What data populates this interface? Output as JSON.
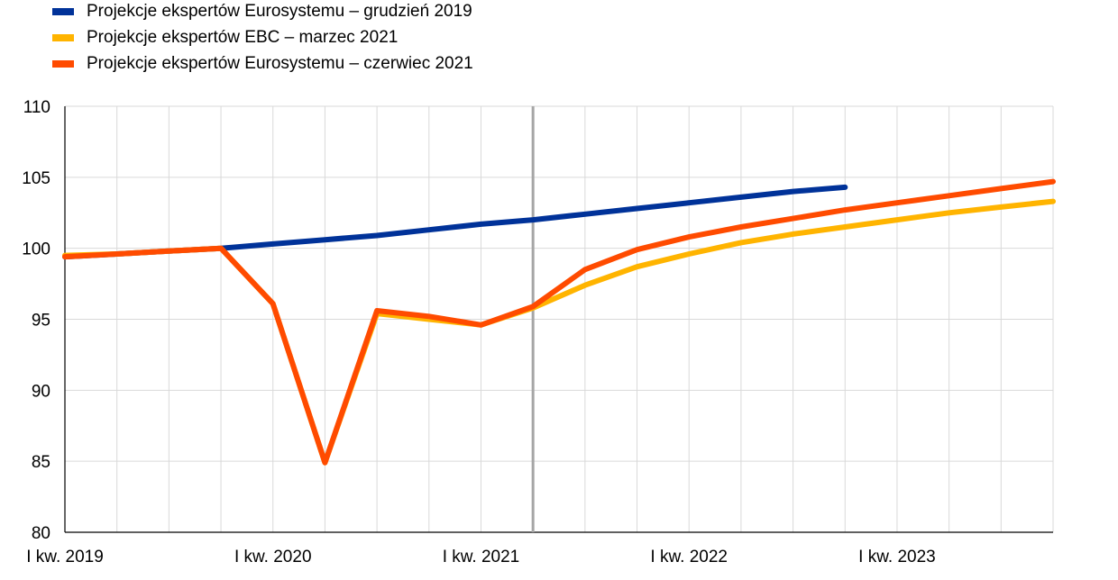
{
  "chart_data": {
    "type": "line",
    "title": "",
    "xlabel": "",
    "ylabel": "",
    "ylim": [
      80,
      110
    ],
    "yticks": [
      80,
      85,
      90,
      95,
      100,
      105,
      110
    ],
    "x": [
      "2019Q1",
      "2019Q2",
      "2019Q3",
      "2019Q4",
      "2020Q1",
      "2020Q2",
      "2020Q3",
      "2020Q4",
      "2021Q1",
      "2021Q2",
      "2021Q3",
      "2021Q4",
      "2022Q1",
      "2022Q2",
      "2022Q3",
      "2022Q4",
      "2023Q1",
      "2023Q2",
      "2023Q3",
      "2023Q4"
    ],
    "xtick_labels": [
      {
        "x": "2019Q1",
        "label": "I kw. 2019"
      },
      {
        "x": "2020Q1",
        "label": "I kw. 2020"
      },
      {
        "x": "2021Q1",
        "label": "I kw. 2021"
      },
      {
        "x": "2022Q1",
        "label": "I kw. 2022"
      },
      {
        "x": "2023Q1",
        "label": "I kw. 2023"
      }
    ],
    "grid": true,
    "legend_position": "top-left",
    "vertical_marker": {
      "x": "2021Q2",
      "color": "#a6a6a6"
    },
    "series": [
      {
        "name": "Projekcje ekspertów Eurosystemu – grudzień 2019",
        "color": "#003299",
        "values": [
          99.4,
          99.6,
          99.8,
          100.0,
          100.3,
          100.6,
          100.9,
          101.3,
          101.7,
          102.0,
          102.4,
          102.8,
          103.2,
          103.6,
          104.0,
          104.3,
          null,
          null,
          null,
          null
        ]
      },
      {
        "name": "Projekcje ekspertów EBC – marzec 2021",
        "color": "#ffb400",
        "values": [
          99.5,
          99.6,
          99.8,
          100.0,
          96.1,
          84.9,
          95.4,
          95.0,
          94.6,
          95.8,
          97.4,
          98.7,
          99.6,
          100.4,
          101.0,
          101.5,
          102.0,
          102.5,
          102.9,
          103.3
        ]
      },
      {
        "name": "Projekcje ekspertów Eurosystemu – czerwiec 2021",
        "color": "#ff4b00",
        "values": [
          99.4,
          99.6,
          99.8,
          100.0,
          96.1,
          84.9,
          95.6,
          95.2,
          94.6,
          95.9,
          98.5,
          99.9,
          100.8,
          101.5,
          102.1,
          102.7,
          103.2,
          103.7,
          104.2,
          104.7
        ]
      }
    ]
  }
}
